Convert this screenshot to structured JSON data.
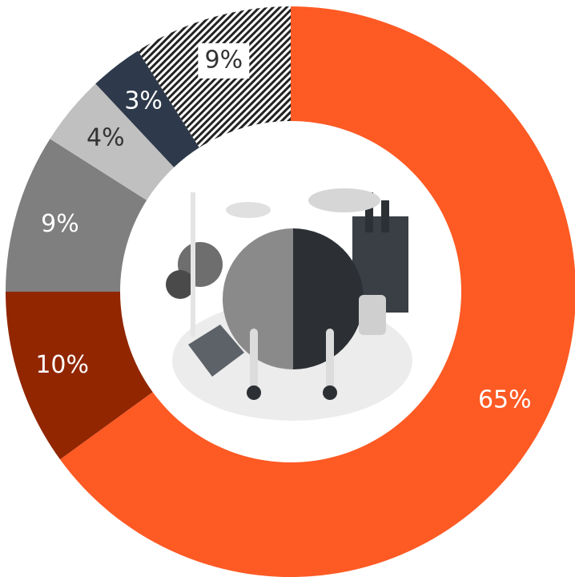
{
  "chart_data": {
    "type": "donut",
    "values": [
      65,
      10,
      9,
      4,
      3,
      9
    ],
    "value_labels": [
      "65%",
      "10%",
      "9%",
      "4%",
      "3%",
      "9%"
    ],
    "colors": [
      "#fe5a24",
      "#912600",
      "#7f7f7f",
      "#c0c0c0",
      "#2e3a4b",
      "#222222"
    ],
    "fills": [
      "solid",
      "solid",
      "solid",
      "solid",
      "solid",
      "hatched"
    ],
    "label_colors": [
      "#ffffff",
      "#ffffff",
      "#ffffff",
      "#333333",
      "#ffffff",
      "#333333"
    ]
  }
}
